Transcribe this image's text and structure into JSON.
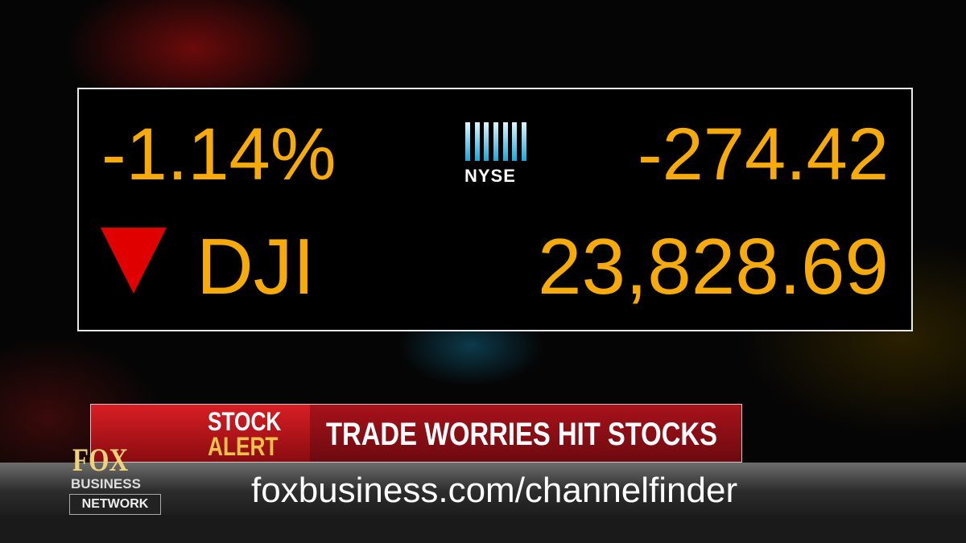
{
  "ticker": {
    "change_percent": "-1.14%",
    "exchange": "NYSE",
    "change_points": "-274.42",
    "index": "DJI",
    "level": "23,828.69"
  },
  "banner": {
    "tag_line1": "STOCK",
    "tag_line2": "ALERT",
    "headline": "TRADE WORRIES HIT STOCKS"
  },
  "logo": {
    "line1": "FOX",
    "line2": "BUSINESS",
    "line3": "NETWORK"
  },
  "url": "foxbusiness.com/channelfinder"
}
